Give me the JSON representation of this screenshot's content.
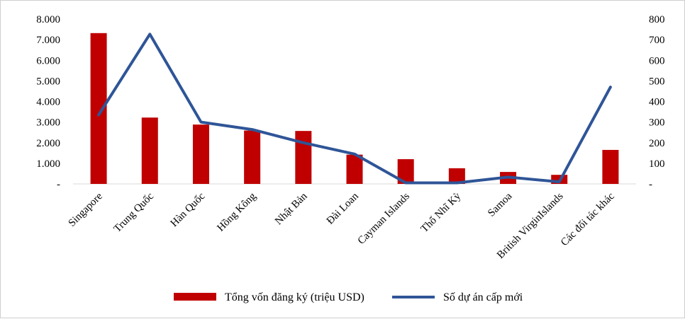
{
  "chart_data": {
    "type": "bar+line",
    "categories": [
      "Singapore",
      "Trung Quốc",
      "Hàn Quốc",
      "Hồng Kông",
      "Nhật Bản",
      "Đài Loan",
      "Cayman Islands",
      "Thổ Nhĩ Kỳ",
      "Samoa",
      "British VirginIslands",
      "Các đối tác khác"
    ],
    "series": [
      {
        "name": "Tổng vốn đăng ký (triệu USD)",
        "type": "bar",
        "axis": "left",
        "color": "#c00000",
        "values": [
          7320,
          3220,
          2880,
          2590,
          2570,
          1420,
          1200,
          760,
          580,
          440,
          1650
        ]
      },
      {
        "name": "Số dự án cấp mới",
        "type": "line",
        "axis": "right",
        "color": "#2f5597",
        "values": [
          335,
          727,
          300,
          264,
          200,
          145,
          5,
          5,
          33,
          10,
          470
        ]
      }
    ],
    "left_axis": {
      "min": 0,
      "max": 8000,
      "ticks": [
        "-",
        "1.000",
        "2.000",
        "3.000",
        "4.000",
        "5.000",
        "6.000",
        "7.000",
        "8.000"
      ]
    },
    "right_axis": {
      "min": 0,
      "max": 800,
      "ticks": [
        "-",
        "100",
        "200",
        "300",
        "400",
        "500",
        "600",
        "700",
        "800"
      ]
    },
    "legend_position": "bottom",
    "grid": false
  }
}
